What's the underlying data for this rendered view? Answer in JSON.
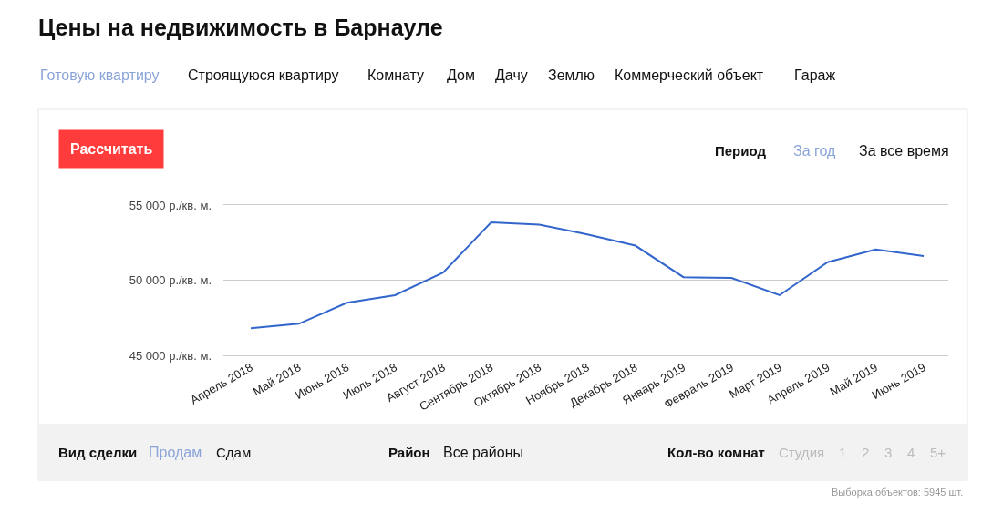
{
  "chart_data": {
    "type": "line",
    "title": "Цены на недвижимость в Барнауле",
    "categories": [
      "Апрель 2018",
      "Май 2018",
      "Июнь 2018",
      "Июль 2018",
      "Август 2018",
      "Сентябрь 2018",
      "Октябрь 2018",
      "Ноябрь 2018",
      "Декабрь 2018",
      "Январь 2019",
      "Февраль 2019",
      "Март 2019",
      "Апрель 2019",
      "Май 2019",
      "Июнь 2019"
    ],
    "series": [
      {
        "color": "#3366cc",
        "values": [
          46800,
          47100,
          48500,
          49000,
          50500,
          53850,
          53700,
          53050,
          52300,
          50200,
          50150,
          49000,
          51200,
          52050,
          51600
        ]
      }
    ],
    "ylim": [
      45000,
      55000
    ],
    "yticks": [
      {
        "value": 45000,
        "label": "45 000 р./кв. м."
      },
      {
        "value": 50000,
        "label": "50 000 р./кв. м."
      },
      {
        "value": 55000,
        "label": "55 000 р./кв. м."
      }
    ],
    "grid": "y",
    "marker": "none",
    "line_style": "solid",
    "annotations": [
      "Готовую квартиру",
      "Строящуюся квартиру",
      "Комнату",
      "Дом",
      "Дачу",
      "Землю",
      "Коммерческий объект",
      "Гараж",
      "Рассчитать",
      "Период",
      "За год",
      "За все время",
      "Вид сделки",
      "Продам",
      "Сдам",
      "Район",
      "Все районы",
      "Кол-во комнат",
      "Студия",
      "1",
      "2",
      "3",
      "4",
      "5+",
      "Выборка объектов: 5945 шт."
    ]
  }
}
